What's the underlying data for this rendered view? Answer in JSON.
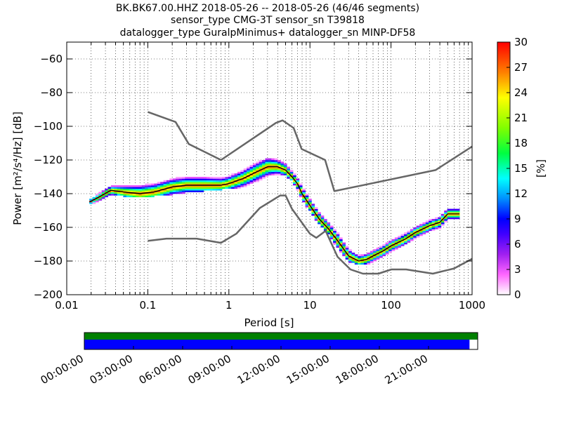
{
  "title_lines": [
    "BK.BK67.00.HHZ   2018-05-26 -- 2018-05-26  (46/46 segments)",
    "sensor_type CMG-3T sensor_sn T39818",
    "datalogger_type GuralpMinimus+ datalogger_sn MINP-DF58"
  ],
  "chart_data": [
    {
      "type": "heatmap",
      "xlabel": "Period [s]",
      "ylabel": "Power [m²/s⁴/Hz] [dB]",
      "xscale": "log",
      "xlim": [
        0.01,
        1000
      ],
      "ylim": [
        -200,
        -50
      ],
      "xtick_labels": [
        "0.01",
        "0.1",
        "1",
        "10",
        "100",
        "1000"
      ],
      "ytick_values": [
        -200,
        -180,
        -160,
        -140,
        -120,
        -100,
        -80,
        -60
      ],
      "ytick_labels": [
        "−200",
        "−180",
        "−160",
        "−140",
        "−120",
        "−100",
        "−80",
        "−60"
      ],
      "grid": true,
      "colorbar": {
        "label": "[%]",
        "range": [
          0,
          30
        ],
        "tick_labels": [
          "0",
          "3",
          "6",
          "9",
          "12",
          "15",
          "18",
          "21",
          "24",
          "27",
          "30"
        ],
        "colormap": "pqlx"
      },
      "series": [
        {
          "role": "mode",
          "color": "#000000",
          "x": [
            0.019,
            0.025,
            0.035,
            0.05,
            0.08,
            0.12,
            0.2,
            0.3,
            0.5,
            0.8,
            1.0,
            1.5,
            2.0,
            3.0,
            4.0,
            5.0,
            6.0,
            7.0,
            8.0,
            10,
            13,
            17,
            22,
            30,
            40,
            50,
            60,
            80,
            100,
            150,
            200,
            300,
            400,
            500,
            700
          ],
          "y": [
            -145,
            -142,
            -138,
            -139,
            -140,
            -139,
            -136,
            -135,
            -135,
            -135,
            -134,
            -131,
            -128,
            -124,
            -124,
            -126,
            -130,
            -134,
            -140,
            -147,
            -155,
            -161,
            -168,
            -177,
            -180,
            -179,
            -177,
            -174,
            -171,
            -167,
            -163,
            -159,
            -157,
            -152,
            -152
          ]
        },
        {
          "role": "nlnm",
          "color": "#666666",
          "x": [
            0.1,
            0.17,
            0.4,
            0.8,
            1.24,
            2.4,
            4.3,
            5.0,
            6.0,
            10,
            12,
            15.6,
            21.9,
            31.6,
            45,
            70,
            101,
            154,
            328,
            600,
            1000
          ],
          "y": [
            -168,
            -166.7,
            -166.7,
            -169.2,
            -163.7,
            -148.6,
            -141.1,
            -141.1,
            -149.0,
            -163.8,
            -166.2,
            -162.1,
            -177.5,
            -185.0,
            -187.5,
            -187.5,
            -185.0,
            -185.0,
            -187.5,
            -184.4,
            -178.7
          ]
        },
        {
          "role": "nhnm",
          "color": "#666666",
          "x": [
            0.1,
            0.22,
            0.32,
            0.8,
            3.8,
            4.6,
            6.3,
            7.9,
            15.4,
            20,
            354,
            1000
          ],
          "y": [
            -91.5,
            -97.4,
            -110.5,
            -120.0,
            -98.0,
            -96.5,
            -101.0,
            -113.5,
            -120.0,
            -138.5,
            -126.0,
            -112.0
          ]
        }
      ],
      "density_ridge": {
        "x": [
          0.019,
          0.025,
          0.035,
          0.05,
          0.08,
          0.12,
          0.2,
          0.3,
          0.5,
          0.8,
          1.0,
          1.5,
          2.0,
          3.0,
          4.0,
          5.0,
          6.0,
          7.0,
          8.0,
          10,
          13,
          17,
          22,
          30,
          40,
          50,
          60,
          80,
          100,
          150,
          200,
          300,
          400,
          500,
          700
        ],
        "y_low": [
          -146,
          -144,
          -140,
          -141,
          -142,
          -141,
          -140,
          -139,
          -138,
          -137,
          -137,
          -136,
          -134,
          -130,
          -128,
          -129,
          -132,
          -137,
          -143,
          -150,
          -158,
          -164,
          -172,
          -180,
          -182,
          -182,
          -180,
          -177,
          -174,
          -170,
          -166,
          -162,
          -160,
          -155,
          -155
        ],
        "y_high": [
          -143,
          -140,
          -135,
          -134,
          -133,
          -132,
          -131,
          -130,
          -129,
          -129,
          -129,
          -127,
          -124,
          -120,
          -120,
          -122,
          -126,
          -131,
          -136,
          -143,
          -151,
          -157,
          -164,
          -173,
          -176,
          -176,
          -174,
          -171,
          -168,
          -164,
          -160,
          -156,
          -154,
          -149,
          -149
        ]
      }
    },
    {
      "type": "bar",
      "role": "data-availability",
      "tick_labels": [
        "00:00:00",
        "03:00:00",
        "06:00:00",
        "09:00:00",
        "12:00:00",
        "15:00:00",
        "18:00:00",
        "21:00:00"
      ],
      "tick_hours": [
        0,
        3,
        6,
        9,
        12,
        15,
        18,
        21
      ],
      "range_hours": [
        0,
        24
      ],
      "series": [
        {
          "name": "",
          "color": "#008000",
          "start_hours": 0,
          "end_hours": 24
        },
        {
          "name": "",
          "color": "#0000ff",
          "start_hours": 0,
          "end_hours": 23.5
        }
      ]
    }
  ]
}
